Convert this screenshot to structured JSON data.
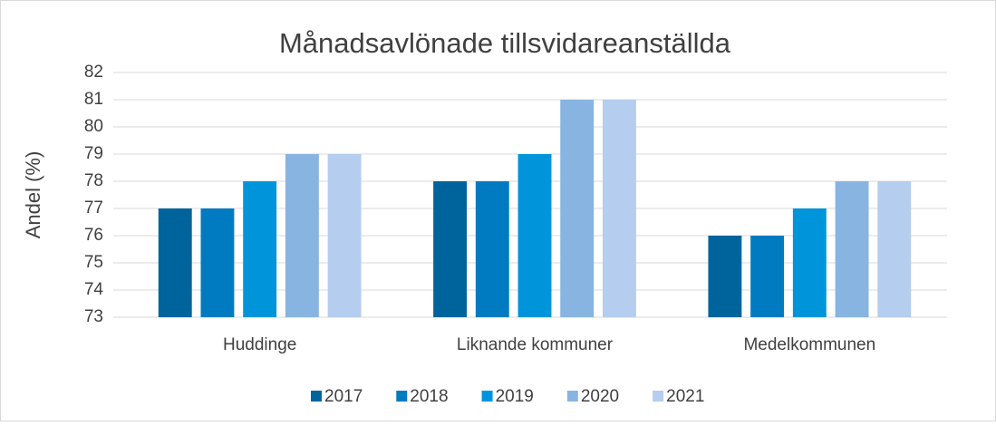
{
  "chart_data": {
    "type": "bar",
    "title": "Månadsavlönade tillsvidareanställda",
    "y_label": "Andel (%)",
    "categories": [
      "Huddinge",
      "Liknande kommuner",
      "Medelkommunen"
    ],
    "series": [
      {
        "name": "2017",
        "color": "#00649c",
        "values": [
          77,
          78,
          76
        ]
      },
      {
        "name": "2018",
        "color": "#007bc2",
        "values": [
          77,
          78,
          76
        ]
      },
      {
        "name": "2019",
        "color": "#0095db",
        "values": [
          78,
          79,
          77
        ]
      },
      {
        "name": "2020",
        "color": "#88b4e2",
        "values": [
          79,
          81,
          78
        ]
      },
      {
        "name": "2021",
        "color": "#b5cdee",
        "values": [
          79,
          81,
          78
        ]
      }
    ],
    "ylim": [
      73,
      82
    ],
    "yticks": [
      73,
      74,
      75,
      76,
      77,
      78,
      79,
      80,
      81,
      82
    ],
    "grid": true,
    "legend": "bottom"
  }
}
